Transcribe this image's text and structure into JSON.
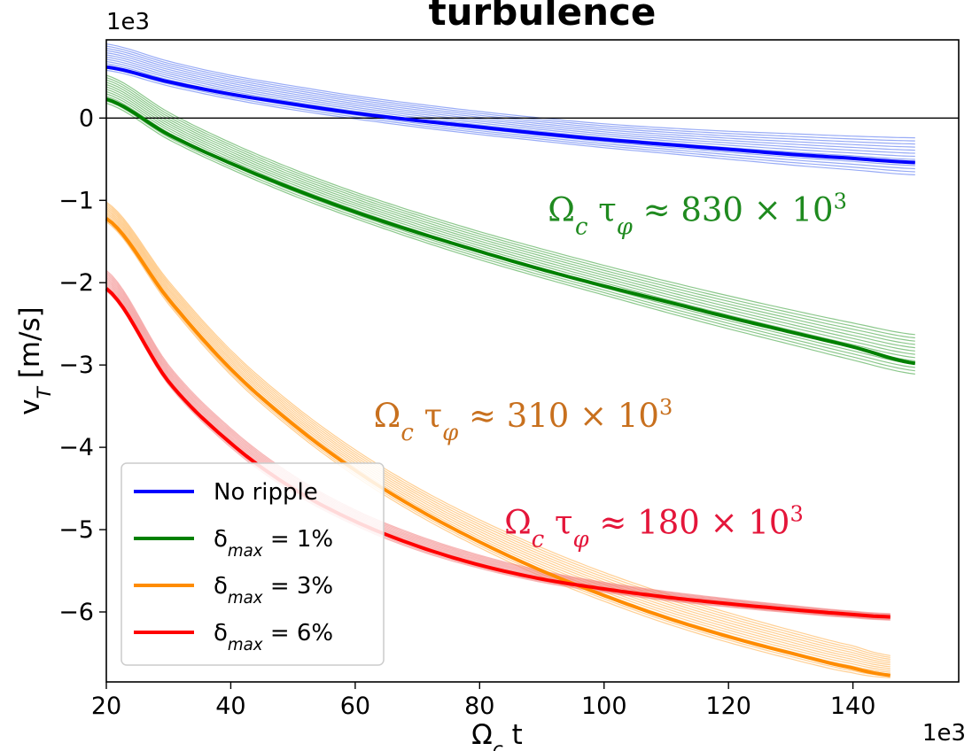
{
  "chart_data": {
    "type": "line",
    "title": "turbulence",
    "xlabel": "Ω_c t",
    "ylabel": "v_T [m/s]",
    "x_multiplier": "1e3",
    "y_multiplier": "1e3",
    "xlim": [
      20,
      157
    ],
    "ylim": [
      -6.85,
      0.95
    ],
    "x_ticks": [
      20,
      40,
      60,
      80,
      100,
      120,
      140
    ],
    "y_ticks": [
      0,
      -1,
      -2,
      -3,
      -4,
      -5,
      -6
    ],
    "x_tick_labels": [
      "20",
      "40",
      "60",
      "80",
      "100",
      "120",
      "140"
    ],
    "y_tick_labels": [
      "0",
      "−1",
      "−2",
      "−3",
      "−4",
      "−5",
      "−6"
    ],
    "grid": false,
    "reference_line_y": 0,
    "legend_position": "lower-left",
    "series": [
      {
        "name": "No ripple",
        "color": "#0000ff",
        "band_color": "#4466ee",
        "x": [
          20,
          30,
          40,
          50,
          60,
          70,
          80,
          90,
          100,
          110,
          120,
          130,
          140,
          150
        ],
        "y": [
          0.62,
          0.44,
          0.29,
          0.17,
          0.06,
          -0.03,
          -0.11,
          -0.19,
          -0.26,
          -0.32,
          -0.38,
          -0.44,
          -0.49,
          -0.54
        ],
        "band_upper": [
          0.9,
          0.69,
          0.52,
          0.39,
          0.27,
          0.17,
          0.08,
          0.0,
          -0.07,
          -0.12,
          -0.16,
          -0.19,
          -0.22,
          -0.24
        ],
        "band_lower": [
          0.58,
          0.39,
          0.23,
          0.1,
          -0.01,
          -0.11,
          -0.2,
          -0.28,
          -0.36,
          -0.43,
          -0.5,
          -0.57,
          -0.63,
          -0.69
        ]
      },
      {
        "name": "δ_max = 1%",
        "color": "#008000",
        "band_color": "#2e9a2e",
        "x": [
          20,
          30,
          40,
          50,
          60,
          70,
          80,
          90,
          100,
          110,
          120,
          130,
          140,
          150
        ],
        "y": [
          0.23,
          -0.2,
          -0.55,
          -0.86,
          -1.14,
          -1.39,
          -1.62,
          -1.84,
          -2.04,
          -2.23,
          -2.42,
          -2.6,
          -2.78,
          -2.98
        ],
        "band_upper": [
          0.52,
          0.07,
          -0.3,
          -0.62,
          -0.9,
          -1.15,
          -1.38,
          -1.59,
          -1.79,
          -1.98,
          -2.16,
          -2.33,
          -2.49,
          -2.63
        ],
        "band_lower": [
          0.18,
          -0.26,
          -0.62,
          -0.94,
          -1.22,
          -1.48,
          -1.72,
          -1.94,
          -2.15,
          -2.36,
          -2.56,
          -2.75,
          -2.94,
          -3.11
        ]
      },
      {
        "name": "δ_max = 3%",
        "color": "#ff8c00",
        "band_color": "#ffa83a",
        "x": [
          20,
          30,
          40,
          50,
          60,
          70,
          80,
          90,
          100,
          110,
          120,
          130,
          140,
          146
        ],
        "y": [
          -1.22,
          -2.2,
          -3.05,
          -3.72,
          -4.28,
          -4.75,
          -5.15,
          -5.5,
          -5.8,
          -6.07,
          -6.3,
          -6.5,
          -6.68,
          -6.77
        ],
        "band_upper": [
          -1.02,
          -1.98,
          -2.82,
          -3.48,
          -4.03,
          -4.49,
          -4.88,
          -5.22,
          -5.52,
          -5.78,
          -6.01,
          -6.22,
          -6.41,
          -6.53
        ],
        "band_lower": [
          -1.26,
          -2.26,
          -3.12,
          -3.79,
          -4.35,
          -4.82,
          -5.22,
          -5.57,
          -5.87,
          -6.14,
          -6.37,
          -6.57,
          -6.74,
          -6.8
        ]
      },
      {
        "name": "δ_max = 6%",
        "color": "#ff0000",
        "band_color": "#f07a7a",
        "x": [
          20,
          30,
          40,
          50,
          60,
          70,
          80,
          90,
          100,
          110,
          120,
          130,
          140,
          146
        ],
        "y": [
          -2.07,
          -3.2,
          -3.95,
          -4.5,
          -4.9,
          -5.2,
          -5.43,
          -5.6,
          -5.72,
          -5.82,
          -5.9,
          -5.97,
          -6.03,
          -6.06
        ],
        "band_upper": [
          -1.85,
          -3.0,
          -3.77,
          -4.34,
          -4.76,
          -5.07,
          -5.31,
          -5.5,
          -5.64,
          -5.75,
          -5.84,
          -5.92,
          -5.99,
          -6.02
        ],
        "band_lower": [
          -2.1,
          -3.24,
          -4.0,
          -4.55,
          -4.95,
          -5.25,
          -5.47,
          -5.64,
          -5.76,
          -5.86,
          -5.94,
          -6.01,
          -6.07,
          -6.1
        ]
      }
    ],
    "annotations": [
      {
        "text": "Ω_c τ_φ ≈ 830 × 10^3",
        "color": "#1f8a1f",
        "x": 115,
        "y": -1.25
      },
      {
        "text": "Ω_c τ_φ ≈ 310 × 10^3",
        "color": "#c8701e",
        "x": 87,
        "y": -3.75
      },
      {
        "text": "Ω_c τ_φ ≈ 180 × 10^3",
        "color": "#e4163a",
        "x": 108,
        "y": -5.05
      }
    ]
  }
}
